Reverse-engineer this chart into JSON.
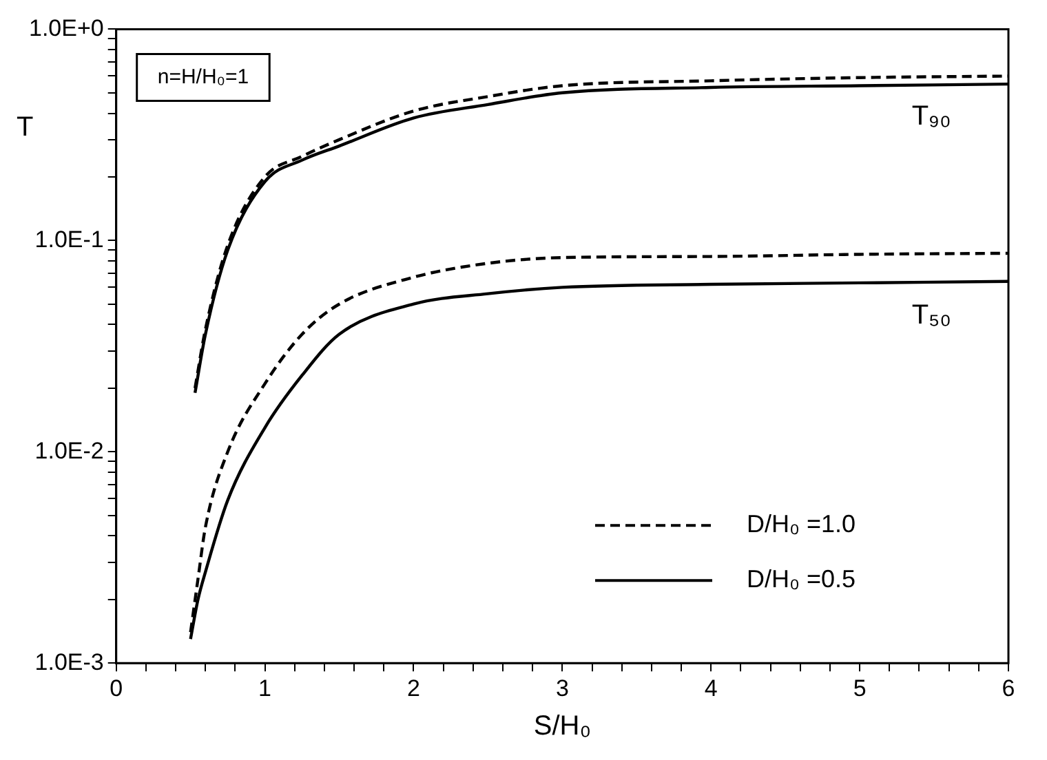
{
  "chart_data": {
    "type": "line",
    "xlabel": "S/H₀",
    "ylabel": "T",
    "log": "y",
    "grid": false,
    "legend": "bottom right",
    "marker": "none",
    "xlim": [
      0,
      6
    ],
    "xticks": [
      0,
      {
        "value": 0.2,
        "label": null
      },
      {
        "value": 0.4,
        "label": null
      },
      {
        "value": 0.6,
        "label": null
      },
      {
        "value": 0.8,
        "label": null
      },
      1,
      {
        "value": 1.2,
        "label": null
      },
      {
        "value": 1.4,
        "label": null
      },
      {
        "value": 1.6,
        "label": null
      },
      {
        "value": 1.8,
        "label": null
      },
      2,
      {
        "value": 2.2,
        "label": null
      },
      {
        "value": 2.4,
        "label": null
      },
      {
        "value": 2.6,
        "label": null
      },
      {
        "value": 2.8,
        "label": null
      },
      3,
      {
        "value": 3.2,
        "label": null
      },
      {
        "value": 3.4,
        "label": null
      },
      {
        "value": 3.6,
        "label": null
      },
      {
        "value": 3.8,
        "label": null
      },
      4,
      {
        "value": 4.2,
        "label": null
      },
      {
        "value": 4.4,
        "label": null
      },
      {
        "value": 4.6,
        "label": null
      },
      {
        "value": 4.8,
        "label": null
      },
      5,
      {
        "value": 5.2,
        "label": null
      },
      {
        "value": 5.4,
        "label": null
      },
      {
        "value": 5.6,
        "label": null
      },
      {
        "value": 5.8,
        "label": null
      },
      6
    ],
    "ylim": [
      0.001,
      1
    ],
    "yticks": [
      {
        "value": 0.001,
        "label": "1.0E-3"
      },
      {
        "value": 0.002,
        "label": null
      },
      {
        "value": 0.003,
        "label": null
      },
      {
        "value": 0.004,
        "label": null
      },
      {
        "value": 0.005,
        "label": null
      },
      {
        "value": 0.006,
        "label": null
      },
      {
        "value": 0.007,
        "label": null
      },
      {
        "value": 0.008,
        "label": null
      },
      {
        "value": 0.009,
        "label": null
      },
      {
        "value": 0.01,
        "label": "1.0E-2"
      },
      {
        "value": 0.02,
        "label": null
      },
      {
        "value": 0.03,
        "label": null
      },
      {
        "value": 0.04,
        "label": null
      },
      {
        "value": 0.05,
        "label": null
      },
      {
        "value": 0.06,
        "label": null
      },
      {
        "value": 0.07,
        "label": null
      },
      {
        "value": 0.08,
        "label": null
      },
      {
        "value": 0.09,
        "label": null
      },
      {
        "value": 0.1,
        "label": "1.0E-1"
      },
      {
        "value": 0.2,
        "label": null
      },
      {
        "value": 0.3,
        "label": null
      },
      {
        "value": 0.4,
        "label": null
      },
      {
        "value": 0.5,
        "label": null
      },
      {
        "value": 0.6,
        "label": null
      },
      {
        "value": 0.7,
        "label": null
      },
      {
        "value": 0.8,
        "label": null
      },
      {
        "value": 0.9,
        "label": null
      },
      {
        "value": 1,
        "label": "1.0E+0"
      }
    ],
    "annotations": [
      "n=H/H₀=1",
      {
        "text": "T₉₀",
        "x": 5.35,
        "y": 0.55
      },
      {
        "text": "T₅₀",
        "x": 5.35,
        "y": 0.063
      }
    ],
    "series": [
      {
        "name": "D/H₀ =1.0",
        "color": "#000000",
        "line_style": "dashed",
        "x": [
          0.53,
          0.6,
          0.75,
          1,
          1.25,
          1.5,
          2,
          2.5,
          3,
          4,
          5,
          6
        ],
        "values": [
          0.02,
          0.038,
          0.095,
          0.2,
          0.25,
          0.3,
          0.41,
          0.48,
          0.54,
          0.57,
          0.59,
          0.6
        ]
      },
      {
        "name": "D/H₀ =0.5",
        "color": "#000000",
        "line_style": "solid",
        "x": [
          0.53,
          0.6,
          0.75,
          1,
          1.25,
          1.5,
          2,
          2.5,
          3,
          4,
          5,
          6
        ],
        "values": [
          0.019,
          0.036,
          0.09,
          0.19,
          0.24,
          0.28,
          0.38,
          0.44,
          0.5,
          0.53,
          0.54,
          0.55
        ]
      },
      {
        "color": "#000000",
        "line_style": "dashed",
        "x": [
          0.5,
          0.55,
          0.6,
          0.75,
          1,
          1.25,
          1.5,
          2,
          2.5,
          3,
          4,
          5,
          6
        ],
        "values": [
          0.0014,
          0.0025,
          0.0044,
          0.01,
          0.021,
          0.036,
          0.05,
          0.067,
          0.078,
          0.083,
          0.084,
          0.086,
          0.087
        ]
      },
      {
        "color": "#000000",
        "line_style": "solid",
        "x": [
          0.5,
          0.55,
          0.6,
          0.75,
          1,
          1.25,
          1.5,
          2,
          2.5,
          3,
          4,
          5,
          6
        ],
        "values": [
          0.0013,
          0.002,
          0.0027,
          0.0059,
          0.013,
          0.023,
          0.036,
          0.05,
          0.056,
          0.06,
          0.062,
          0.063,
          0.064
        ]
      }
    ]
  }
}
